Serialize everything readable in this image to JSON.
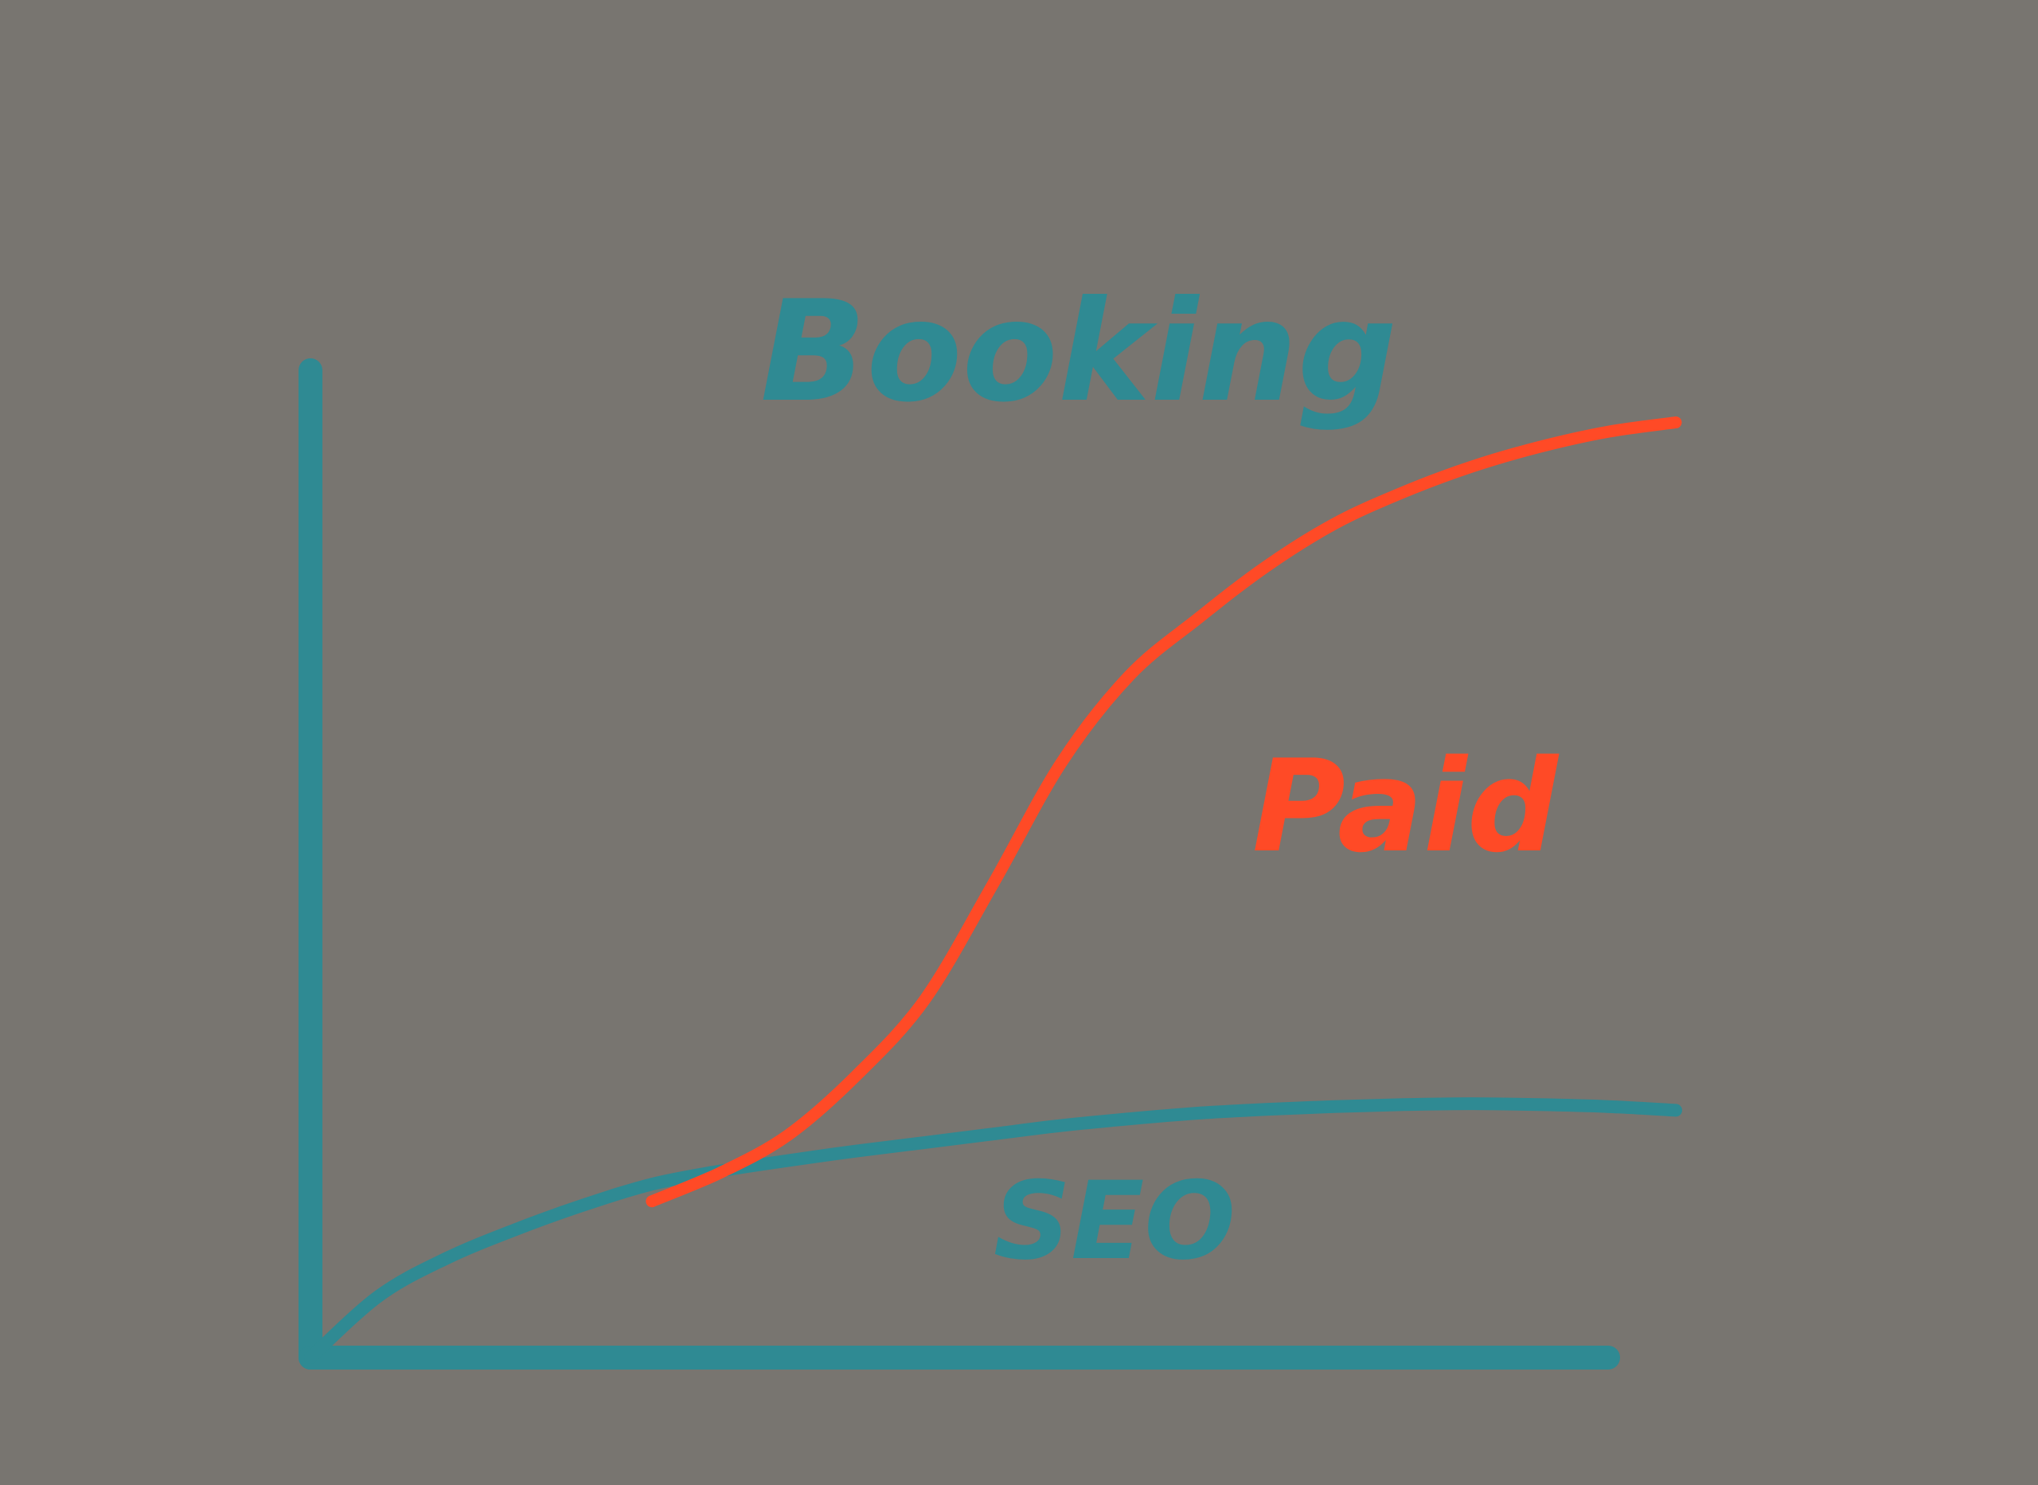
{
  "colors": {
    "background": "#787570",
    "axis": "#2f8a93",
    "seo": "#2f8a93",
    "paid": "#ff4a26"
  },
  "chart_data": {
    "type": "line",
    "title": "",
    "ylabel": "Booking",
    "xlabel": "",
    "xlim": [
      0,
      100
    ],
    "ylim": [
      0,
      100
    ],
    "grid": false,
    "series": [
      {
        "name": "SEO",
        "color_key": "seo",
        "x": [
          0,
          5,
          10,
          15,
          20,
          25,
          30,
          35,
          40,
          45,
          50,
          55,
          60,
          65,
          70,
          75,
          80,
          85,
          90,
          95,
          100
        ],
        "y": [
          0,
          6.5,
          10.5,
          13.5,
          16.1,
          18.3,
          19.7,
          20.8,
          21.8,
          22.7,
          23.6,
          24.5,
          25.2,
          25.8,
          26.2,
          26.5,
          26.7,
          26.8,
          26.7,
          26.5,
          26.1
        ]
      },
      {
        "name": "Paid",
        "color_key": "paid",
        "x": [
          25,
          30,
          35,
          40,
          45,
          50,
          55,
          60,
          65,
          70,
          75,
          80,
          85,
          90,
          95,
          100
        ],
        "y": [
          16.5,
          19.5,
          23.5,
          29.8,
          37.8,
          50.0,
          62.8,
          72.0,
          78.0,
          83.5,
          88.0,
          91.3,
          94.0,
          96.1,
          97.7,
          98.7
        ]
      }
    ],
    "annotations": [
      {
        "text": "Booking",
        "role": "y-axis-label",
        "color_key": "seo"
      },
      {
        "text": "Paid",
        "role": "series-label",
        "series": "Paid",
        "color_key": "paid"
      },
      {
        "text": "SEO",
        "role": "series-label",
        "series": "SEO",
        "color_key": "seo"
      }
    ]
  }
}
